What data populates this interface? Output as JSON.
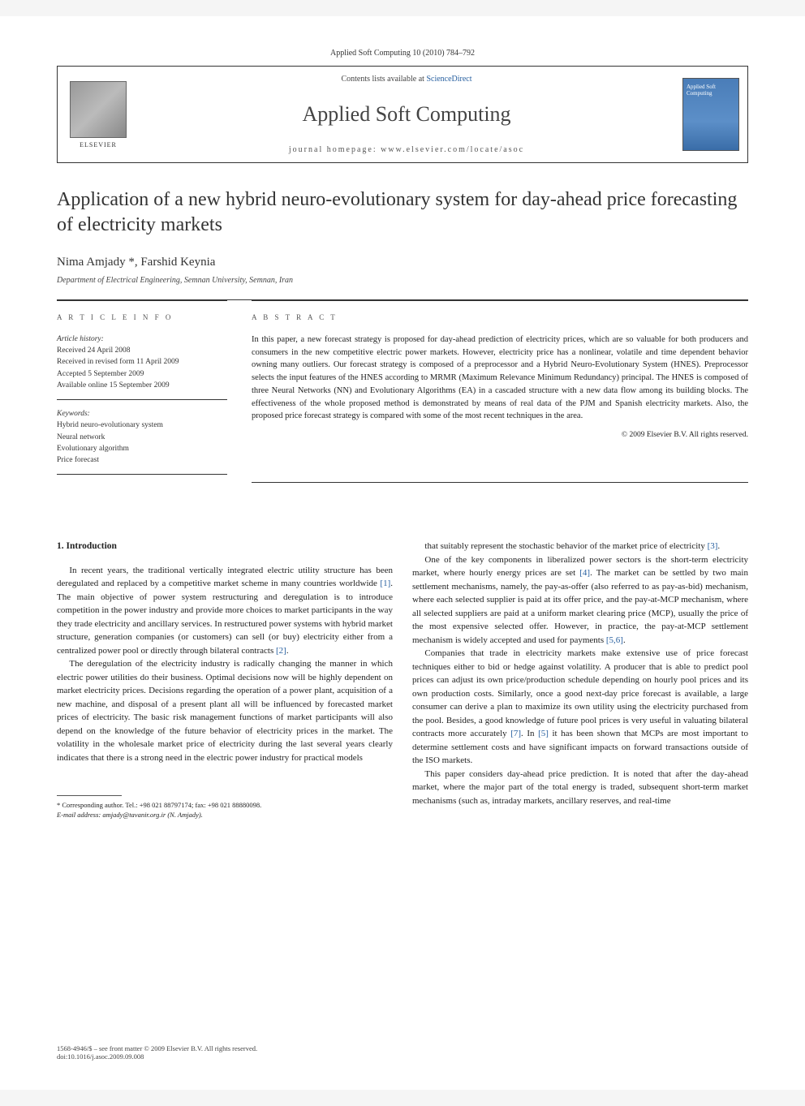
{
  "header_line": "Applied Soft Computing 10 (2010) 784–792",
  "banner": {
    "contents": "Contents lists available at ",
    "contents_link": "ScienceDirect",
    "journal": "Applied Soft Computing",
    "homepage": "journal homepage: www.elsevier.com/locate/asoc",
    "elsevier": "ELSEVIER",
    "cover_label": "Applied Soft Computing"
  },
  "title": "Application of a new hybrid neuro-evolutionary system for day-ahead price forecasting of electricity markets",
  "authors": "Nima Amjady *, Farshid Keynia",
  "affiliation": "Department of Electrical Engineering, Semnan University, Semnan, Iran",
  "info": {
    "heading": "A R T I C L E   I N F O",
    "history_head": "Article history:",
    "h1": "Received 24 April 2008",
    "h2": "Received in revised form 11 April 2009",
    "h3": "Accepted 5 September 2009",
    "h4": "Available online 15 September 2009",
    "keywords_head": "Keywords:",
    "k1": "Hybrid neuro-evolutionary system",
    "k2": "Neural network",
    "k3": "Evolutionary algorithm",
    "k4": "Price forecast"
  },
  "abstract": {
    "heading": "A B S T R A C T",
    "text": "In this paper, a new forecast strategy is proposed for day-ahead prediction of electricity prices, which are so valuable for both producers and consumers in the new competitive electric power markets. However, electricity price has a nonlinear, volatile and time dependent behavior owning many outliers. Our forecast strategy is composed of a preprocessor and a Hybrid Neuro-Evolutionary System (HNES). Preprocessor selects the input features of the HNES according to MRMR (Maximum Relevance Minimum Redundancy) principal. The HNES is composed of three Neural Networks (NN) and Evolutionary Algorithms (EA) in a cascaded structure with a new data flow among its building blocks. The effectiveness of the whole proposed method is demonstrated by means of real data of the PJM and Spanish electricity markets. Also, the proposed price forecast strategy is compared with some of the most recent techniques in the area.",
    "copyright": "© 2009 Elsevier B.V. All rights reserved."
  },
  "section1_heading": "1. Introduction",
  "col1": {
    "p1": "In recent years, the traditional vertically integrated electric utility structure has been deregulated and replaced by a competitive market scheme in many countries worldwide [1]. The main objective of power system restructuring and deregulation is to introduce competition in the power industry and provide more choices to market participants in the way they trade electricity and ancillary services. In restructured power systems with hybrid market structure, generation companies (or customers) can sell (or buy) electricity either from a centralized power pool or directly through bilateral contracts [2].",
    "p2": "The deregulation of the electricity industry is radically changing the manner in which electric power utilities do their business. Optimal decisions now will be highly dependent on market electricity prices. Decisions regarding the operation of a power plant, acquisition of a new machine, and disposal of a present plant all will be influenced by forecasted market prices of electricity. The basic risk management functions of market participants will also depend on the knowledge of the future behavior of electricity prices in the market. The volatility in the wholesale market price of electricity during the last several years clearly indicates that there is a strong need in the electric power industry for practical models"
  },
  "col2": {
    "p1": "that suitably represent the stochastic behavior of the market price of electricity [3].",
    "p2": "One of the key components in liberalized power sectors is the short-term electricity market, where hourly energy prices are set [4]. The market can be settled by two main settlement mechanisms, namely, the pay-as-offer (also referred to as pay-as-bid) mechanism, where each selected supplier is paid at its offer price, and the pay-at-MCP mechanism, where all selected suppliers are paid at a uniform market clearing price (MCP), usually the price of the most expensive selected offer. However, in practice, the pay-at-MCP settlement mechanism is widely accepted and used for payments [5,6].",
    "p3": "Companies that trade in electricity markets make extensive use of price forecast techniques either to bid or hedge against volatility. A producer that is able to predict pool prices can adjust its own price/production schedule depending on hourly pool prices and its own production costs. Similarly, once a good next-day price forecast is available, a large consumer can derive a plan to maximize its own utility using the electricity purchased from the pool. Besides, a good knowledge of future pool prices is very useful in valuating bilateral contracts more accurately [7]. In [5] it has been shown that MCPs are most important to determine settlement costs and have significant impacts on forward transactions outside of the ISO markets.",
    "p4": "This paper considers day-ahead price prediction. It is noted that after the day-ahead market, where the major part of the total energy is traded, subsequent short-term market mechanisms (such as, intraday markets, ancillary reserves, and real-time"
  },
  "footnote": {
    "l1": "* Corresponding author. Tel.: +98 021 88797174; fax: +98 021 88880098.",
    "l2": "E-mail address: amjady@tavanir.org.ir (N. Amjady)."
  },
  "footer": {
    "l1": "1568-4946/$ – see front matter © 2009 Elsevier B.V. All rights reserved.",
    "l2": "doi:10.1016/j.asoc.2009.09.008"
  }
}
